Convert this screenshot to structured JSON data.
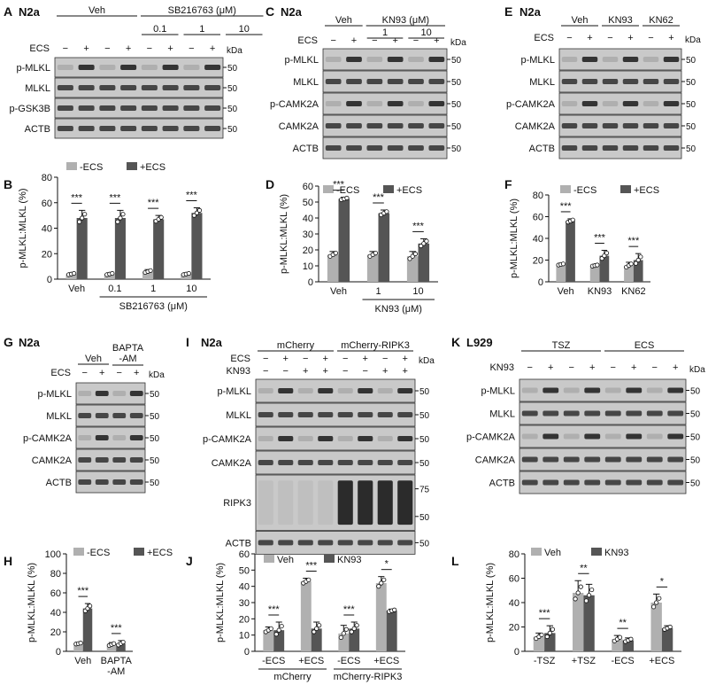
{
  "blot_panels": [
    {
      "letter": "A",
      "cell": "N2a",
      "head_groups": [
        {
          "label": "Veh"
        },
        {
          "label": "SB216763 (μM)",
          "sub": [
            "0.1",
            "1",
            "10"
          ]
        }
      ],
      "treatment_label": "ECS",
      "lanes": [
        "−",
        "+",
        "−",
        "+",
        "−",
        "+",
        "−",
        "+"
      ],
      "kda_label": "kDa",
      "rows": [
        {
          "label": "p-MLKL",
          "markers": [
            "50"
          ]
        },
        {
          "label": "MLKL",
          "markers": [
            "50"
          ]
        },
        {
          "label": "p-GSK3B",
          "markers": [
            "50"
          ]
        },
        {
          "label": "ACTB",
          "markers": [
            "50"
          ]
        }
      ]
    },
    {
      "letter": "C",
      "cell": "N2a",
      "head_groups": [
        {
          "label": "Veh"
        },
        {
          "label": "KN93 (μM)",
          "sub": [
            "1",
            "10"
          ]
        }
      ],
      "treatment_label": "ECS",
      "lanes": [
        "−",
        "+",
        "−",
        "+",
        "−",
        "+"
      ],
      "kda_label": "kDa",
      "rows": [
        {
          "label": "p-MLKL",
          "markers": [
            "50"
          ]
        },
        {
          "label": "MLKL",
          "markers": [
            "50"
          ]
        },
        {
          "label": "p-CAMK2A",
          "markers": [
            "50"
          ]
        },
        {
          "label": "CAMK2A",
          "markers": [
            "50"
          ]
        },
        {
          "label": "ACTB",
          "markers": [
            "50"
          ]
        }
      ]
    },
    {
      "letter": "E",
      "cell": "N2a",
      "head_groups": [
        {
          "label": "Veh"
        },
        {
          "label": "KN93"
        },
        {
          "label": "KN62"
        }
      ],
      "treatment_label": "ECS",
      "lanes": [
        "−",
        "+",
        "−",
        "+",
        "−",
        "+"
      ],
      "kda_label": "kDa",
      "rows": [
        {
          "label": "p-MLKL",
          "markers": [
            "50"
          ]
        },
        {
          "label": "MLKL",
          "markers": [
            "50"
          ]
        },
        {
          "label": "p-CAMK2A",
          "markers": [
            "50"
          ]
        },
        {
          "label": "CAMK2A",
          "markers": [
            "50"
          ]
        },
        {
          "label": "ACTB",
          "markers": [
            "50"
          ]
        }
      ]
    },
    {
      "letter": "G",
      "cell": "N2a",
      "head_groups": [
        {
          "label": "Veh"
        },
        {
          "label": "BAPTA\n-AM"
        }
      ],
      "treatment_label": "ECS",
      "lanes": [
        "−",
        "+",
        "−",
        "+"
      ],
      "kda_label": "kDa",
      "rows": [
        {
          "label": "p-MLKL",
          "markers": [
            "50"
          ]
        },
        {
          "label": "MLKL",
          "markers": [
            "50"
          ]
        },
        {
          "label": "p-CAMK2A",
          "markers": [
            "50"
          ]
        },
        {
          "label": "CAMK2A",
          "markers": [
            "50"
          ]
        },
        {
          "label": "ACTB",
          "markers": [
            "50"
          ]
        }
      ]
    },
    {
      "letter": "I",
      "cell": "N2a",
      "head_groups": [
        {
          "label": "mCherry"
        },
        {
          "label": "mCherry-RIPK3"
        }
      ],
      "treatment_label": "ECS",
      "treatment_label2": "KN93",
      "lanes": [
        "−",
        "+",
        "−",
        "+",
        "−",
        "+",
        "−",
        "+"
      ],
      "lanes2": [
        "−",
        "−",
        "+",
        "+",
        "−",
        "−",
        "+",
        "+"
      ],
      "kda_label": "kDa",
      "rows": [
        {
          "label": "p-MLKL",
          "markers": [
            "50"
          ]
        },
        {
          "label": "MLKL",
          "markers": [
            "50"
          ]
        },
        {
          "label": "p-CAMK2A",
          "markers": [
            "50"
          ]
        },
        {
          "label": "CAMK2A",
          "markers": [
            "50"
          ]
        },
        {
          "label": "RIPK3",
          "markers": [
            "75",
            "50"
          ]
        },
        {
          "label": "ACTB",
          "markers": [
            "50"
          ]
        }
      ]
    },
    {
      "letter": "K",
      "cell": "L929",
      "head_groups": [
        {
          "label": "TSZ"
        },
        {
          "label": "ECS"
        }
      ],
      "treatment_label": "KN93",
      "lanes": [
        "−",
        "+",
        "−",
        "+",
        "−",
        "+",
        "−",
        "+"
      ],
      "kda_label": "kDa",
      "rows": [
        {
          "label": "p-MLKL",
          "markers": [
            "50"
          ]
        },
        {
          "label": "MLKL",
          "markers": [
            "50"
          ]
        },
        {
          "label": "p-CAMK2A",
          "markers": [
            "50"
          ]
        },
        {
          "label": "CAMK2A",
          "markers": [
            "50"
          ]
        },
        {
          "label": "ACTB",
          "markers": [
            "50"
          ]
        }
      ]
    }
  ],
  "chart_data": [
    {
      "panel": "B",
      "type": "bar",
      "ylabel": "p-MLKL:MLKL (%)",
      "ylim": [
        0,
        80
      ],
      "yticks": [
        0,
        20,
        40,
        60,
        80
      ],
      "categories": [
        "Veh",
        "0.1",
        "1",
        "10"
      ],
      "group_label": "SB216763 (μM)",
      "legend": "top",
      "series": [
        {
          "name": "-ECS",
          "color": "#b0b0b0",
          "values": [
            4,
            4,
            6,
            4
          ],
          "errors": [
            1,
            1,
            1.5,
            1
          ]
        },
        {
          "name": "+ECS",
          "color": "#555555",
          "values": [
            48,
            48,
            47,
            52
          ],
          "errors": [
            6,
            6,
            3,
            4
          ]
        }
      ],
      "significance": [
        "***",
        "***",
        "***",
        "***"
      ]
    },
    {
      "panel": "D",
      "type": "bar",
      "ylabel": "p-MLKL:MLKL (%)",
      "ylim": [
        0,
        60
      ],
      "yticks": [
        0,
        10,
        20,
        30,
        40,
        50,
        60
      ],
      "categories": [
        "Veh",
        "1",
        "10"
      ],
      "group_label": "KN93 (μM)",
      "legend": "top",
      "series": [
        {
          "name": "-ECS",
          "color": "#b0b0b0",
          "values": [
            17,
            17,
            16
          ],
          "errors": [
            2,
            2,
            3
          ]
        },
        {
          "name": "+ECS",
          "color": "#555555",
          "values": [
            52,
            43,
            24
          ],
          "errors": [
            1,
            2,
            3
          ]
        }
      ],
      "significance": [
        "***",
        "***",
        "***"
      ]
    },
    {
      "panel": "F",
      "type": "bar",
      "ylabel": "p-MLKL:MLKL (%)",
      "ylim": [
        0,
        80
      ],
      "yticks": [
        0,
        20,
        40,
        60,
        80
      ],
      "categories": [
        "Veh",
        "KN93",
        "KN62"
      ],
      "legend": "top",
      "series": [
        {
          "name": "-ECS",
          "color": "#b0b0b0",
          "values": [
            16,
            15,
            15
          ],
          "errors": [
            1,
            1,
            3
          ]
        },
        {
          "name": "+ECS",
          "color": "#555555",
          "values": [
            56,
            24,
            20
          ],
          "errors": [
            2,
            5,
            6
          ]
        }
      ],
      "significance": [
        "***",
        "***",
        "***"
      ]
    },
    {
      "panel": "H",
      "type": "bar",
      "ylabel": "p-MLKL:MLKL (%)",
      "ylim": [
        0,
        100
      ],
      "yticks": [
        0,
        20,
        40,
        60,
        80,
        100
      ],
      "categories": [
        "Veh",
        "BAPTA\n-AM"
      ],
      "legend": "top-left",
      "series": [
        {
          "name": "-ECS",
          "color": "#b0b0b0",
          "values": [
            8,
            7
          ],
          "errors": [
            1,
            2
          ]
        },
        {
          "name": "+ECS",
          "color": "#555555",
          "values": [
            44,
            8
          ],
          "errors": [
            5,
            3
          ]
        }
      ],
      "significance": [
        "***",
        "***"
      ]
    },
    {
      "panel": "J",
      "type": "bar",
      "ylabel": "p-MLKL:MLKL (%)",
      "ylim": [
        0,
        60
      ],
      "yticks": [
        0,
        10,
        20,
        30,
        40,
        50,
        60
      ],
      "categories": [
        "-ECS",
        "+ECS",
        "-ECS",
        "+ECS"
      ],
      "group_labels": [
        "mCherry",
        "mCherry-RIPK3"
      ],
      "legend": "top",
      "series": [
        {
          "name": "Veh",
          "color": "#b0b0b0",
          "values": [
            13,
            43,
            11,
            42
          ],
          "errors": [
            2,
            2,
            5,
            4
          ]
        },
        {
          "name": "KN93",
          "color": "#555555",
          "values": [
            13,
            14,
            14,
            25
          ],
          "errors": [
            5,
            4,
            4,
            1
          ]
        }
      ],
      "significance": [
        "***",
        "***",
        "***",
        "*"
      ]
    },
    {
      "panel": "L",
      "type": "bar",
      "ylabel": "p-MLKL:MLKL (%)",
      "ylim": [
        0,
        80
      ],
      "yticks": [
        0,
        20,
        40,
        60,
        80
      ],
      "categories": [
        "-TSZ",
        "+TSZ",
        "-ECS",
        "+ECS"
      ],
      "legend": "top",
      "series": [
        {
          "name": "Veh",
          "color": "#b0b0b0",
          "values": [
            12,
            48,
            10,
            40
          ],
          "errors": [
            3,
            10,
            3,
            7
          ]
        },
        {
          "name": "KN93",
          "color": "#555555",
          "values": [
            15,
            46,
            9,
            19
          ],
          "errors": [
            6,
            9,
            2,
            2
          ]
        }
      ],
      "significance": [
        "***",
        "**",
        "**",
        "*"
      ]
    }
  ]
}
